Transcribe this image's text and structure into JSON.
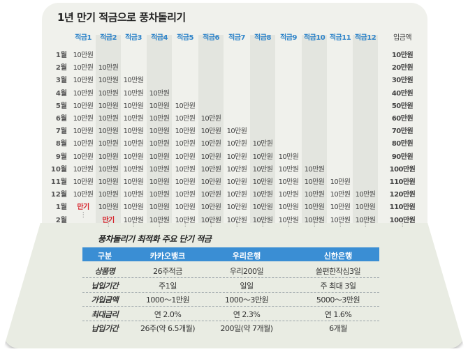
{
  "title": "1년 만기 적금으로 풍차돌리기",
  "grid": {
    "columns": [
      "적금1",
      "적금2",
      "적금3",
      "적금4",
      "적금5",
      "적금6",
      "적금7",
      "적금8",
      "적금9",
      "적금10",
      "적금11",
      "적금12"
    ],
    "total_header": "입금액",
    "amount": "10만원",
    "maturity_label": "만기",
    "dots": "⋮",
    "rows": [
      {
        "month": "1월",
        "total": "10만원"
      },
      {
        "month": "2월",
        "total": "20만원"
      },
      {
        "month": "3월",
        "total": "30만원"
      },
      {
        "month": "4월",
        "total": "40만원"
      },
      {
        "month": "5월",
        "total": "50만원"
      },
      {
        "month": "6월",
        "total": "60만원"
      },
      {
        "month": "7월",
        "total": "70만원"
      },
      {
        "month": "8월",
        "total": "80만원"
      },
      {
        "month": "9월",
        "total": "90만원"
      },
      {
        "month": "10월",
        "total": "100만원"
      },
      {
        "month": "11월",
        "total": "110만원"
      },
      {
        "month": "12월",
        "total": "120만원"
      },
      {
        "month": "1월",
        "total": "110만원"
      },
      {
        "month": "2월",
        "total": "100만원"
      }
    ]
  },
  "products": {
    "title": "풍차돌리기 최적화 주요 단기 적금",
    "headers": [
      "구분",
      "카카오뱅크",
      "우리은행",
      "신한은행"
    ],
    "rows": [
      {
        "label": "상품명",
        "values": [
          "26주적금",
          "우리200일",
          "쏠편한작심3일"
        ]
      },
      {
        "label": "납입기간",
        "values": [
          "주1일",
          "일일",
          "주 최대 3일"
        ]
      },
      {
        "label": "가입금액",
        "values": [
          "1000～1만원",
          "1000～3만원",
          "5000～3만원"
        ]
      },
      {
        "label": "최대금리",
        "values": [
          "연 2.0%",
          "연 2.3%",
          "연 1.6%"
        ]
      },
      {
        "label": "납입기간",
        "values": [
          "26주(약 6.5개월)",
          "200일(약 7개월)",
          "6개월"
        ]
      }
    ]
  }
}
